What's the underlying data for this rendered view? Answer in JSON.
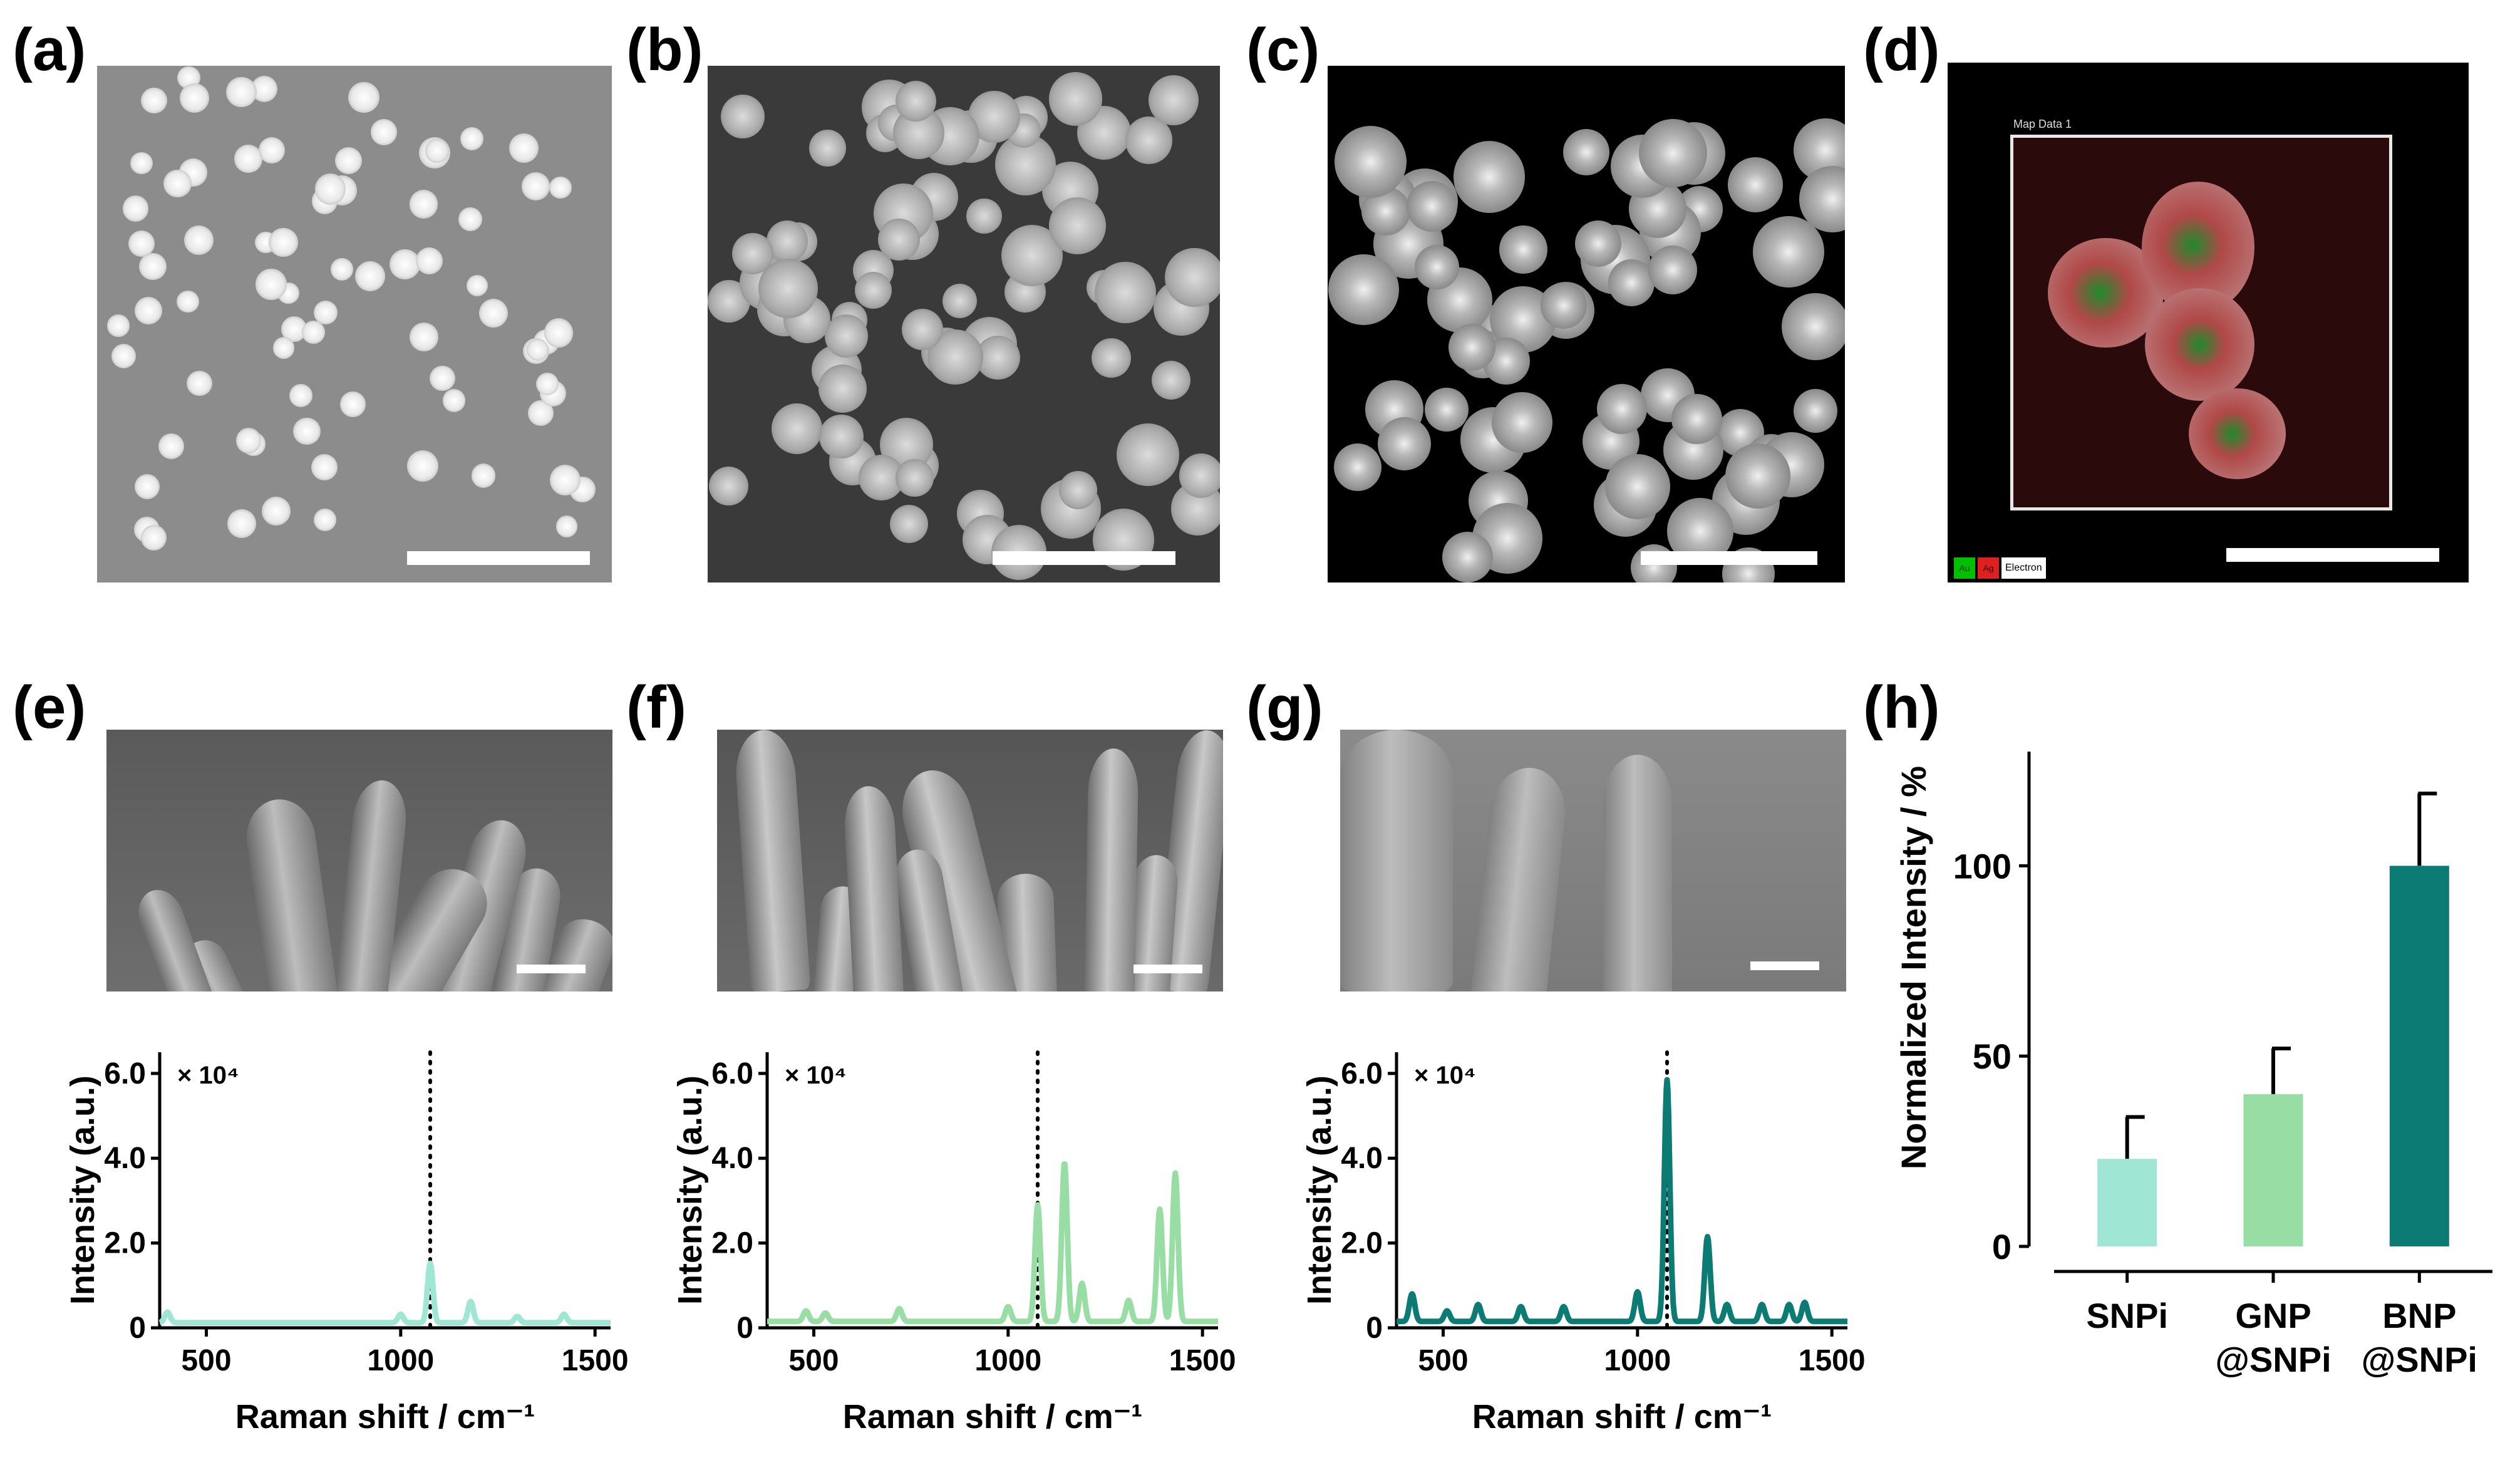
{
  "panels": {
    "a": "(a)",
    "b": "(b)",
    "c": "(c)",
    "d": "(d)",
    "e": "(e)",
    "f": "(f)",
    "g": "(g)",
    "h": "(h)"
  },
  "eds": {
    "map_title": "Map Data 1",
    "legend": [
      {
        "label": "Au",
        "color": "#00c000"
      },
      {
        "label": "Ag",
        "color": "#e02020"
      },
      {
        "label": "Electron",
        "color": "#ffffff"
      }
    ]
  },
  "colors": {
    "SNPi": "#a0e6d4",
    "GNP@SNPi": "#98dea4",
    "BNP@SNPi": "#0b7b74"
  },
  "chart_data": [
    {
      "type": "line",
      "panel": "e",
      "xlabel": "Raman shift / cm⁻¹",
      "ylabel": "Intensity (a.u.)",
      "multiplier": "× 10⁴",
      "xlim": [
        380,
        1540
      ],
      "ylim": [
        0,
        6.5
      ],
      "xticks": [
        500,
        1000,
        1500
      ],
      "yticks": [
        "0",
        "2.0",
        "4.0",
        "6.0"
      ],
      "reference_line_x": 1076,
      "color": "#a0e6d4",
      "baseline": 0.12,
      "peaks": [
        [
          400,
          0.25
        ],
        [
          1000,
          0.2
        ],
        [
          1076,
          1.4
        ],
        [
          1180,
          0.5
        ],
        [
          1300,
          0.15
        ],
        [
          1420,
          0.2
        ]
      ]
    },
    {
      "type": "line",
      "panel": "f",
      "xlabel": "Raman shift / cm⁻¹",
      "ylabel": "Intensity (a.u.)",
      "multiplier": "× 10⁴",
      "xlim": [
        380,
        1540
      ],
      "ylim": [
        0,
        6.5
      ],
      "xticks": [
        500,
        1000,
        1500
      ],
      "yticks": [
        "0",
        "2.0",
        "4.0",
        "6.0"
      ],
      "reference_line_x": 1076,
      "color": "#98dea4",
      "baseline": 0.15,
      "peaks": [
        [
          480,
          0.25
        ],
        [
          530,
          0.2
        ],
        [
          720,
          0.3
        ],
        [
          1000,
          0.35
        ],
        [
          1076,
          2.75
        ],
        [
          1145,
          3.75
        ],
        [
          1190,
          0.9
        ],
        [
          1310,
          0.5
        ],
        [
          1390,
          2.65
        ],
        [
          1430,
          3.5
        ]
      ]
    },
    {
      "type": "line",
      "panel": "g",
      "xlabel": "Raman shift / cm⁻¹",
      "ylabel": "Intensity (a.u.)",
      "multiplier": "× 10⁴",
      "xlim": [
        380,
        1540
      ],
      "ylim": [
        0,
        6.5
      ],
      "xticks": [
        500,
        1000,
        1500
      ],
      "yticks": [
        "0",
        "2.0",
        "4.0",
        "6.0"
      ],
      "reference_line_x": 1076,
      "color": "#0b7b74",
      "baseline": 0.15,
      "peaks": [
        [
          420,
          0.65
        ],
        [
          510,
          0.25
        ],
        [
          590,
          0.4
        ],
        [
          700,
          0.35
        ],
        [
          810,
          0.35
        ],
        [
          1000,
          0.7
        ],
        [
          1076,
          5.7
        ],
        [
          1180,
          2.0
        ],
        [
          1230,
          0.4
        ],
        [
          1320,
          0.4
        ],
        [
          1390,
          0.4
        ],
        [
          1430,
          0.45
        ]
      ]
    },
    {
      "type": "bar",
      "panel": "h",
      "ylabel": "Normalized Intensity / %",
      "ylim": [
        0,
        130
      ],
      "yticks": [
        0,
        50,
        100
      ],
      "categories": [
        [
          "SNPi"
        ],
        [
          "GNP",
          "@SNPi"
        ],
        [
          "BNP",
          "@SNPi"
        ]
      ],
      "values": [
        23,
        40,
        100
      ],
      "errors": [
        11,
        12,
        19
      ],
      "colors": [
        "#a0e6d4",
        "#98dea4",
        "#0b7b74"
      ]
    }
  ]
}
